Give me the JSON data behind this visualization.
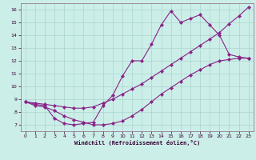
{
  "background_color": "#cceee8",
  "grid_color": "#aad4ce",
  "line_color": "#882288",
  "marker_color": "#882288",
  "xlabel": "Windchill (Refroidissement éolien,°C)",
  "xlim": [
    -0.5,
    23.5
  ],
  "ylim": [
    6.5,
    16.5
  ],
  "xticks": [
    0,
    1,
    2,
    3,
    4,
    5,
    6,
    7,
    8,
    9,
    10,
    11,
    12,
    13,
    14,
    15,
    16,
    17,
    18,
    19,
    20,
    21,
    22,
    23
  ],
  "yticks": [
    7,
    8,
    9,
    10,
    11,
    12,
    13,
    14,
    15,
    16
  ],
  "line1_x": [
    0,
    1,
    2,
    3,
    4,
    5,
    6,
    7,
    8,
    9,
    10,
    11,
    12,
    13,
    14,
    15,
    16,
    17,
    18,
    19,
    20,
    21,
    22,
    23
  ],
  "line1_y": [
    8.8,
    8.6,
    8.5,
    7.5,
    7.1,
    7.0,
    7.1,
    7.2,
    8.5,
    9.3,
    10.8,
    12.0,
    12.0,
    13.3,
    14.8,
    15.9,
    15.0,
    15.3,
    15.6,
    14.8,
    14.0,
    12.5,
    12.3,
    12.2
  ],
  "line2_x": [
    0,
    1,
    2,
    3,
    4,
    5,
    6,
    7,
    8,
    9,
    10,
    11,
    12,
    13,
    14,
    15,
    16,
    17,
    18,
    19,
    20,
    21,
    22,
    23
  ],
  "line2_y": [
    8.8,
    8.7,
    8.6,
    8.5,
    8.4,
    8.3,
    8.3,
    8.4,
    8.7,
    9.0,
    9.4,
    9.8,
    10.2,
    10.7,
    11.2,
    11.7,
    12.2,
    12.7,
    13.2,
    13.7,
    14.2,
    14.9,
    15.5,
    16.2
  ],
  "line3_x": [
    0,
    1,
    2,
    3,
    4,
    5,
    6,
    7,
    8,
    9,
    10,
    11,
    12,
    13,
    14,
    15,
    16,
    17,
    18,
    19,
    20,
    21,
    22,
    23
  ],
  "line3_y": [
    8.8,
    8.5,
    8.4,
    8.1,
    7.7,
    7.4,
    7.2,
    7.0,
    7.0,
    7.1,
    7.3,
    7.7,
    8.2,
    8.8,
    9.4,
    9.9,
    10.4,
    10.9,
    11.3,
    11.7,
    12.0,
    12.1,
    12.2,
    12.2
  ]
}
